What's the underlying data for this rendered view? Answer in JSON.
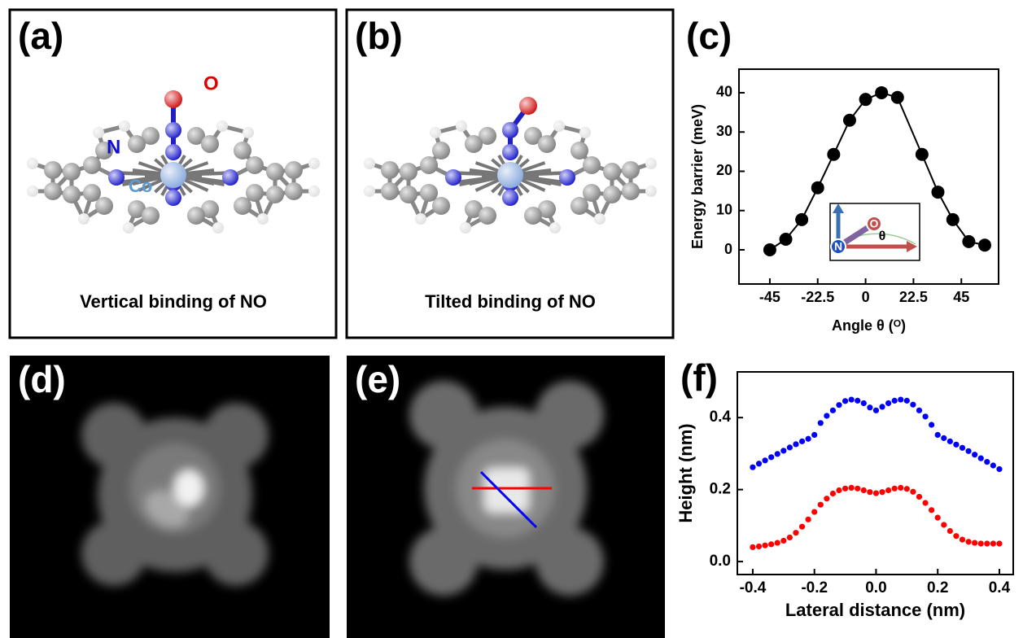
{
  "panels": {
    "a": {
      "label": "(a)",
      "caption": "Vertical binding of NO",
      "atom_labels": [
        "O",
        "N",
        "Co"
      ]
    },
    "b": {
      "label": "(b)",
      "caption": "Tilted binding of NO"
    },
    "c": {
      "label": "(c)"
    },
    "d": {
      "label": "(d)"
    },
    "e": {
      "label": "(e)"
    },
    "f": {
      "label": "(f)"
    }
  },
  "chart_data": [
    {
      "type": "line",
      "xlabel": "Angle θ (ᴼ)",
      "ylabel": "Energy barrier (meV)",
      "x": [
        -45,
        -37.5,
        -30,
        -22.5,
        -15,
        -7.5,
        0,
        7.5,
        15,
        26.5,
        34,
        41,
        48.5,
        56
      ],
      "values": [
        0,
        2.7,
        7.7,
        15.8,
        24.3,
        33,
        38.3,
        40,
        38.8,
        24.3,
        14.7,
        7.7,
        2.1,
        1.2
      ],
      "color": "#000000",
      "xlim": [
        -59.5,
        62.5
      ],
      "ylim": [
        -8.7,
        46
      ],
      "xticks": [
        -45,
        -22.5,
        0,
        22.5,
        45
      ],
      "yticks": [
        0,
        10,
        20,
        30,
        40
      ],
      "inset_labels": [
        "O",
        "N",
        "θ"
      ]
    },
    {
      "type": "scatter",
      "xlabel": "Lateral distance (nm)",
      "ylabel": "Height (nm)",
      "x": [
        -0.4,
        -0.38,
        -0.36,
        -0.34,
        -0.32,
        -0.3,
        -0.28,
        -0.26,
        -0.24,
        -0.22,
        -0.2,
        -0.18,
        -0.16,
        -0.14,
        -0.12,
        -0.1,
        -0.08,
        -0.06,
        -0.04,
        -0.02,
        0,
        0.02,
        0.04,
        0.06,
        0.08,
        0.1,
        0.12,
        0.14,
        0.16,
        0.18,
        0.2,
        0.22,
        0.24,
        0.26,
        0.28,
        0.3,
        0.32,
        0.34,
        0.36,
        0.38,
        0.4
      ],
      "series": [
        {
          "color": "#0000ff",
          "values": [
            0.262,
            0.272,
            0.281,
            0.29,
            0.299,
            0.308,
            0.317,
            0.326,
            0.334,
            0.341,
            0.352,
            0.385,
            0.405,
            0.42,
            0.435,
            0.446,
            0.45,
            0.447,
            0.44,
            0.428,
            0.42,
            0.43,
            0.44,
            0.447,
            0.45,
            0.447,
            0.436,
            0.42,
            0.403,
            0.38,
            0.352,
            0.343,
            0.334,
            0.325,
            0.316,
            0.307,
            0.297,
            0.287,
            0.277,
            0.267,
            0.257
          ]
        },
        {
          "color": "#ff0000",
          "values": [
            0.04,
            0.042,
            0.045,
            0.048,
            0.052,
            0.058,
            0.067,
            0.08,
            0.097,
            0.117,
            0.138,
            0.158,
            0.175,
            0.189,
            0.198,
            0.203,
            0.205,
            0.203,
            0.198,
            0.193,
            0.19,
            0.193,
            0.198,
            0.203,
            0.205,
            0.202,
            0.194,
            0.18,
            0.163,
            0.143,
            0.122,
            0.102,
            0.085,
            0.071,
            0.061,
            0.055,
            0.052,
            0.05,
            0.05,
            0.05,
            0.05
          ]
        }
      ],
      "xlim": [
        -0.45,
        0.445
      ],
      "ylim": [
        -0.036,
        0.527
      ],
      "xticks": [
        -0.4,
        -0.2,
        {
          "value": 0,
          "label": "0.0"
        },
        0.2,
        0.4
      ],
      "yticks": [
        {
          "value": 0,
          "label": "0.0"
        },
        0.2,
        0.4
      ]
    }
  ]
}
